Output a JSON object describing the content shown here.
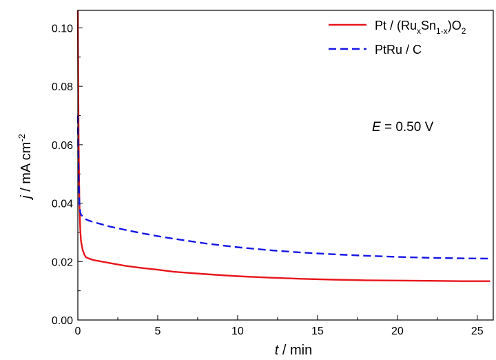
{
  "chart_data": {
    "type": "line",
    "title": "",
    "xlabel_var": "t",
    "xlabel_unit": " / min",
    "ylabel_var": "j",
    "ylabel_unit": " / mA cm",
    "ylabel_exp": "-2",
    "xlim": [
      0,
      26
    ],
    "ylim": [
      0,
      0.106
    ],
    "xticks": [
      0,
      5,
      10,
      15,
      20,
      25
    ],
    "xtick_labels": [
      "0",
      "5",
      "10",
      "15",
      "20",
      "25"
    ],
    "yticks": [
      0.0,
      0.02,
      0.04,
      0.06,
      0.08,
      0.1
    ],
    "ytick_labels": [
      "0.00",
      "0.02",
      "0.04",
      "0.06",
      "0.08",
      "0.10"
    ],
    "grid": false,
    "legend_position": "top-right",
    "series": [
      {
        "name": "Pt / (RuxSn1-x)O2",
        "color": "#e8141b",
        "style": "solid",
        "x": [
          0.0,
          0.02,
          0.05,
          0.1,
          0.15,
          0.2,
          0.3,
          0.4,
          0.5,
          0.7,
          1.0,
          2,
          3,
          4,
          5,
          6,
          8,
          10,
          12,
          14,
          16,
          18,
          20,
          22,
          24,
          25.8
        ],
        "y": [
          0.106,
          0.085,
          0.06,
          0.04,
          0.031,
          0.027,
          0.024,
          0.0225,
          0.0215,
          0.021,
          0.0205,
          0.0195,
          0.0185,
          0.0178,
          0.0172,
          0.0165,
          0.0157,
          0.015,
          0.0145,
          0.0141,
          0.0138,
          0.0136,
          0.0135,
          0.0134,
          0.0133,
          0.0133
        ]
      },
      {
        "name": "PtRu / C",
        "color": "#1515e6",
        "style": "dashed",
        "x": [
          0.0,
          0.02,
          0.05,
          0.1,
          0.15,
          0.2,
          0.3,
          0.5,
          0.7,
          1.0,
          2,
          3,
          4,
          5,
          6,
          8,
          10,
          12,
          14,
          16,
          18,
          20,
          22,
          24,
          25.8
        ],
        "y": [
          0.07,
          0.058,
          0.048,
          0.04,
          0.037,
          0.036,
          0.0355,
          0.0345,
          0.034,
          0.0335,
          0.032,
          0.0308,
          0.0297,
          0.0287,
          0.0278,
          0.0262,
          0.0249,
          0.0239,
          0.0231,
          0.0225,
          0.022,
          0.0216,
          0.0213,
          0.0211,
          0.021
        ]
      }
    ],
    "legend": [
      {
        "label": "Pt / (Ru",
        "sub1": "x",
        "mid": "Sn",
        "sub2": "1-x",
        "tail": ")O",
        "sub3": "2"
      },
      {
        "label": "PtRu / C"
      }
    ],
    "annotations": [
      {
        "var": "E",
        "text": " = 0.50 V"
      }
    ]
  }
}
